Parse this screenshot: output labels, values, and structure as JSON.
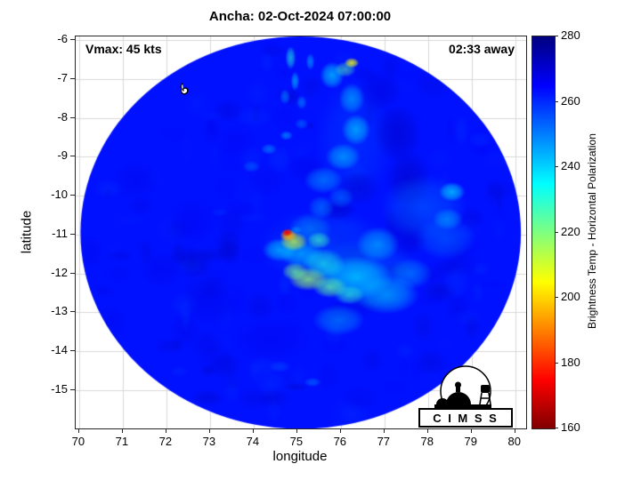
{
  "title": "Ancha: 02-Oct-2024 07:00:00",
  "annotations": {
    "vmax": "Vmax: 45 kts",
    "eta": "02:33 away"
  },
  "axes": {
    "xlabel": "longitude",
    "ylabel": "latitude",
    "x_ticks": [
      70,
      71,
      72,
      73,
      74,
      75,
      76,
      77,
      78,
      79,
      80
    ],
    "y_ticks": [
      -6,
      -7,
      -8,
      -9,
      -10,
      -11,
      -12,
      -13,
      -14,
      -15
    ]
  },
  "colorbar": {
    "label": "Brightness Temp - Horizontal Polarization",
    "min": 160,
    "max": 280,
    "ticks": [
      160,
      180,
      200,
      220,
      240,
      260,
      280
    ]
  },
  "logo": {
    "text": "C I M S S"
  },
  "chart_data": {
    "type": "heatmap",
    "title": "Ancha: 02-Oct-2024 07:00:00",
    "xlabel": "longitude",
    "ylabel": "latitude",
    "xlim": [
      69.92,
      80.25
    ],
    "ylim": [
      -15.99,
      -5.9
    ],
    "grid": true,
    "colormap": "jet_reversed_blue_high",
    "value_label": "Brightness Temp - Horizontal Polarization (K)",
    "value_range": [
      160,
      280
    ],
    "disk": {
      "center_lon": 75.08,
      "center_lat": -10.95,
      "radius_deg": 5.05
    },
    "base_temp": 263,
    "storm_marker": {
      "lon": 72.4,
      "lat": -7.25
    },
    "eye": {
      "lon": 74.77,
      "lat": -10.95,
      "min_temp": 173
    },
    "features_format": "[lon, lat, rx_deg, ry_deg, temp_K, alpha]",
    "features": [
      [
        75.6,
        -11.3,
        1.5,
        1.0,
        250,
        0.3
      ],
      [
        76.3,
        -8.6,
        0.9,
        1.7,
        252,
        0.25
      ],
      [
        76.6,
        -12.0,
        1.3,
        0.9,
        248,
        0.35
      ],
      [
        77.3,
        -8.4,
        0.55,
        0.75,
        272,
        0.5
      ],
      [
        77.55,
        -9.6,
        0.5,
        0.8,
        273,
        0.5
      ],
      [
        77.5,
        -10.9,
        0.5,
        0.7,
        271,
        0.45
      ],
      [
        76.9,
        -7.3,
        0.5,
        0.5,
        270,
        0.45
      ],
      [
        76.4,
        -9.8,
        0.5,
        0.45,
        271,
        0.45
      ],
      [
        75.95,
        -10.35,
        0.4,
        0.3,
        272,
        0.5
      ],
      [
        73.0,
        -12.8,
        0.65,
        0.5,
        268,
        0.35
      ],
      [
        71.9,
        -11.9,
        0.5,
        0.45,
        268,
        0.35
      ],
      [
        71.3,
        -9.6,
        0.55,
        0.5,
        268,
        0.3
      ],
      [
        72.6,
        -10.6,
        0.6,
        0.55,
        267,
        0.3
      ],
      [
        74.4,
        -13.7,
        0.9,
        0.55,
        267,
        0.35
      ],
      [
        73.6,
        -8.6,
        0.5,
        0.4,
        267,
        0.3
      ],
      [
        75.2,
        -9.3,
        0.45,
        0.4,
        268,
        0.35
      ],
      [
        77.9,
        -10.3,
        1.0,
        0.85,
        252,
        0.5
      ],
      [
        78.4,
        -11.1,
        0.7,
        0.55,
        250,
        0.45
      ],
      [
        78.55,
        -9.9,
        0.3,
        0.25,
        240,
        0.75
      ],
      [
        78.45,
        -10.6,
        0.35,
        0.28,
        244,
        0.55
      ],
      [
        76.35,
        -12.1,
        0.85,
        0.55,
        237,
        0.65
      ],
      [
        77.05,
        -12.55,
        0.75,
        0.5,
        241,
        0.6
      ],
      [
        75.6,
        -11.75,
        0.5,
        0.4,
        232,
        0.65
      ],
      [
        76.85,
        -11.25,
        0.5,
        0.45,
        240,
        0.55
      ],
      [
        75.95,
        -13.2,
        0.6,
        0.4,
        244,
        0.5
      ],
      [
        77.6,
        -12.0,
        0.5,
        0.4,
        246,
        0.5
      ],
      [
        75.25,
        -12.15,
        0.45,
        0.3,
        217,
        0.75
      ],
      [
        75.75,
        -12.35,
        0.4,
        0.28,
        223,
        0.7
      ],
      [
        74.95,
        -11.95,
        0.3,
        0.24,
        221,
        0.7
      ],
      [
        76.2,
        -12.55,
        0.35,
        0.25,
        229,
        0.6
      ],
      [
        75.6,
        -9.6,
        0.45,
        0.35,
        245,
        0.55
      ],
      [
        76.05,
        -9.0,
        0.4,
        0.35,
        241,
        0.6
      ],
      [
        76.35,
        -8.3,
        0.33,
        0.4,
        238,
        0.6
      ],
      [
        76.25,
        -7.5,
        0.3,
        0.4,
        240,
        0.55
      ],
      [
        75.8,
        -6.9,
        0.28,
        0.35,
        236,
        0.6
      ],
      [
        76.1,
        -6.75,
        0.25,
        0.2,
        225,
        0.55
      ],
      [
        76.25,
        -6.58,
        0.17,
        0.13,
        207,
        0.85
      ],
      [
        74.85,
        -6.45,
        0.12,
        0.3,
        231,
        0.6
      ],
      [
        74.95,
        -7.05,
        0.1,
        0.25,
        238,
        0.55
      ],
      [
        74.72,
        -7.45,
        0.12,
        0.2,
        245,
        0.5
      ],
      [
        75.3,
        -6.55,
        0.1,
        0.22,
        240,
        0.5
      ],
      [
        75.1,
        -7.6,
        0.12,
        0.18,
        243,
        0.45
      ],
      [
        74.35,
        -8.8,
        0.18,
        0.14,
        246,
        0.55
      ],
      [
        74.75,
        -8.45,
        0.15,
        0.12,
        243,
        0.55
      ],
      [
        73.95,
        -9.25,
        0.2,
        0.15,
        250,
        0.45
      ],
      [
        75.1,
        -8.15,
        0.15,
        0.14,
        248,
        0.45
      ],
      [
        75.3,
        -10.85,
        0.5,
        0.4,
        246,
        0.5
      ],
      [
        75.1,
        -11.5,
        0.5,
        0.35,
        238,
        0.55
      ],
      [
        74.6,
        -11.4,
        0.4,
        0.3,
        236,
        0.55
      ],
      [
        75.55,
        -10.3,
        0.3,
        0.3,
        245,
        0.45
      ],
      [
        76.0,
        -10.05,
        0.3,
        0.28,
        248,
        0.45
      ],
      [
        75.5,
        -11.15,
        0.28,
        0.22,
        228,
        0.65
      ],
      [
        74.92,
        -11.18,
        0.32,
        0.25,
        212,
        0.8
      ],
      [
        74.8,
        -11.02,
        0.2,
        0.16,
        195,
        0.9
      ],
      [
        74.77,
        -10.95,
        0.12,
        0.1,
        173,
        0.95
      ],
      [
        74.98,
        -10.88,
        0.13,
        0.1,
        248,
        0.7
      ],
      [
        75.35,
        -14.8,
        0.2,
        0.12,
        248,
        0.45
      ],
      [
        74.6,
        -14.4,
        0.25,
        0.15,
        252,
        0.35
      ]
    ],
    "noise": {
      "seed": 7,
      "count": 190,
      "temp_min": 256,
      "temp_max": 276,
      "r_min": 0.1,
      "r_max": 0.45,
      "a_min": 0.12,
      "a_max": 0.3
    }
  }
}
